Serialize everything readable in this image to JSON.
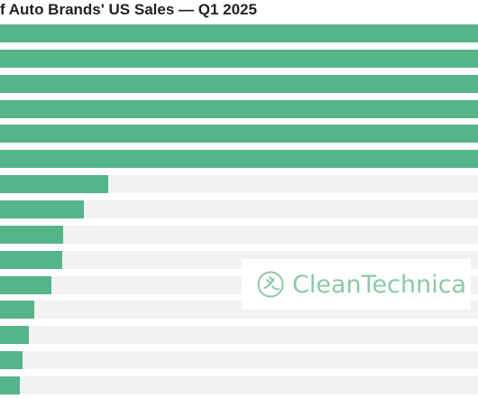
{
  "chart_data": {
    "type": "bar",
    "orientation": "horizontal",
    "title": "f Auto Brands' US Sales — Q1 2025",
    "values": [
      100,
      100,
      100,
      100,
      100,
      100,
      22.6,
      17.5,
      13.2,
      13.0,
      10.8,
      7.2,
      6.0,
      4.8,
      4.2
    ],
    "xlim": [
      0,
      100
    ],
    "bar_color": "#55b488",
    "track_color": "#f2f2f2"
  },
  "watermark": {
    "text": "CleanTechnica",
    "icon": "plug-leaf-icon",
    "color": "#8cc8a6"
  }
}
